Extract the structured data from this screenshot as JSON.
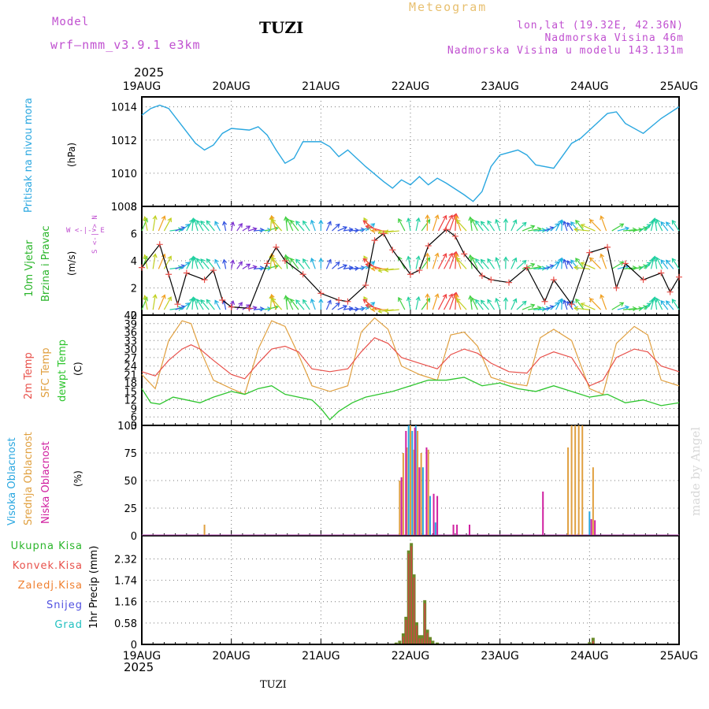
{
  "header": {
    "model_label": "Model",
    "model_name": "wrf—nmm_v3.9.1  e3km",
    "station": "TUZI",
    "meteogram": "Meteogram",
    "lonlat": "lon,lat (19.32E, 42.36N)",
    "altitude": "Nadmorska Visina 46m",
    "model_altitude": "Nadmorska Visina u modelu 143.131m",
    "year": "2025",
    "footer_station": "TUZI",
    "watermark": "made by Angel"
  },
  "colors": {
    "pressure": "#2aa7e0",
    "wind_label": "#2ab52a",
    "temp2m": "#e8504a",
    "sfc": "#e0a040",
    "dewpt": "#2ec52e",
    "high": "#2aa7e0",
    "mid": "#e0a040",
    "low": "#d020a0",
    "total": "#2ab52a",
    "conv": "#e8504a",
    "frozen": "#f08030",
    "snow": "#5050e0",
    "hail": "#20c0c0",
    "header_purple": "#c050d0",
    "header_gold": "#e8c070"
  },
  "chart_data": [
    {
      "type": "line",
      "panel": "pressure",
      "title": "Pritisak na nivou mora",
      "ylabel": "(hPa)",
      "x_ticks": [
        "19AUG",
        "20AUG",
        "21AUG",
        "22AUG",
        "23AUG",
        "24AUG",
        "25AUG"
      ],
      "xlim_days": [
        0,
        6
      ],
      "ylim": [
        1008,
        1014.6
      ],
      "y_ticks": [
        "1008",
        "1010",
        "1012",
        "1014"
      ],
      "y_tick_values": [
        1008,
        1010,
        1012,
        1014
      ],
      "series": [
        {
          "name": "MSLP",
          "x": [
            0,
            0.1,
            0.2,
            0.3,
            0.5,
            0.6,
            0.7,
            0.8,
            0.9,
            1.0,
            1.2,
            1.3,
            1.4,
            1.5,
            1.6,
            1.7,
            1.8,
            2.0,
            2.1,
            2.2,
            2.3,
            2.5,
            2.7,
            2.8,
            2.9,
            3.0,
            3.1,
            3.2,
            3.3,
            3.4,
            3.6,
            3.7,
            3.8,
            3.9,
            4.0,
            4.2,
            4.3,
            4.4,
            4.6,
            4.8,
            4.9,
            5.0,
            5.2,
            5.3,
            5.4,
            5.6,
            5.8,
            6.0
          ],
          "values": [
            1013.5,
            1013.9,
            1014.1,
            1013.9,
            1012.5,
            1011.8,
            1011.4,
            1011.7,
            1012.4,
            1012.7,
            1012.6,
            1012.8,
            1012.3,
            1011.4,
            1010.6,
            1010.9,
            1011.9,
            1011.9,
            1011.6,
            1011.0,
            1011.4,
            1010.4,
            1009.5,
            1009.1,
            1009.6,
            1009.3,
            1009.8,
            1009.3,
            1009.7,
            1009.4,
            1008.7,
            1008.3,
            1008.9,
            1010.4,
            1011.1,
            1011.4,
            1011.1,
            1010.5,
            1010.3,
            1011.8,
            1012.1,
            1012.6,
            1013.6,
            1013.7,
            1013.0,
            1012.4,
            1013.3,
            1014.0
          ]
        }
      ]
    },
    {
      "type": "line",
      "panel": "wind",
      "title": "10m Vjetar",
      "title2": "Brzina i Pravac",
      "ylabel": "(m/s)",
      "legend_dirs": "W <-|-> E",
      "legend_ns": "S <-|-> N",
      "ylim": [
        0,
        8
      ],
      "y_ticks": [
        "0",
        "2",
        "4",
        "6",
        "8"
      ],
      "y_tick_values": [
        0,
        2,
        4,
        6,
        8
      ],
      "series": [
        {
          "name": "speed",
          "x": [
            0,
            0.2,
            0.3,
            0.4,
            0.5,
            0.7,
            0.8,
            0.9,
            1.0,
            1.2,
            1.4,
            1.5,
            1.6,
            1.8,
            2.0,
            2.2,
            2.3,
            2.5,
            2.6,
            2.7,
            2.8,
            3.0,
            3.1,
            3.2,
            3.4,
            3.5,
            3.6,
            3.8,
            3.9,
            4.1,
            4.3,
            4.5,
            4.6,
            4.8,
            5.0,
            5.2,
            5.3,
            5.4,
            5.6,
            5.8,
            5.9,
            6.0
          ],
          "values": [
            3.5,
            5.2,
            3.0,
            0.8,
            3.1,
            2.6,
            3.3,
            1.1,
            0.6,
            0.5,
            3.8,
            5.0,
            4.0,
            3.0,
            1.6,
            1.1,
            1.0,
            2.2,
            5.5,
            6.0,
            4.8,
            3.0,
            3.3,
            5.1,
            6.3,
            5.8,
            4.5,
            2.9,
            2.6,
            2.4,
            3.5,
            1.0,
            2.6,
            0.8,
            4.6,
            5.0,
            2.0,
            3.8,
            2.6,
            3.1,
            1.7,
            2.8
          ]
        }
      ]
    },
    {
      "type": "line",
      "panel": "temperature",
      "title_2m": "2m Temp",
      "title_sfc": "SFC Temp",
      "title_dew": "dewpt Temp",
      "ylabel": "(C)",
      "ylim": [
        3,
        42
      ],
      "y_ticks": [
        "3",
        "6",
        "9",
        "12",
        "15",
        "18",
        "21",
        "24",
        "27",
        "30",
        "33",
        "36",
        "39",
        "42"
      ],
      "y_tick_values": [
        3,
        6,
        9,
        12,
        15,
        18,
        21,
        24,
        27,
        30,
        33,
        36,
        39,
        42
      ],
      "series": [
        {
          "name": "2m Temp",
          "x": [
            0,
            0.15,
            0.3,
            0.45,
            0.55,
            0.65,
            0.8,
            1.0,
            1.15,
            1.3,
            1.45,
            1.6,
            1.75,
            1.9,
            2.1,
            2.3,
            2.45,
            2.6,
            2.75,
            2.9,
            3.1,
            3.3,
            3.45,
            3.6,
            3.75,
            3.9,
            4.1,
            4.3,
            4.45,
            4.6,
            4.8,
            5.0,
            5.15,
            5.3,
            5.5,
            5.65,
            5.8,
            6.0
          ],
          "values": [
            22,
            20.5,
            26,
            30,
            31.5,
            30,
            26,
            21,
            19.5,
            25,
            30,
            31,
            29,
            23,
            22,
            23,
            29,
            34,
            32,
            27,
            25,
            23,
            28,
            30,
            28.5,
            25,
            22,
            21.5,
            27,
            29,
            27,
            17,
            19,
            27,
            30,
            29,
            24,
            22
          ]
        },
        {
          "name": "SFC Temp",
          "x": [
            0,
            0.15,
            0.3,
            0.45,
            0.55,
            0.65,
            0.8,
            1.0,
            1.15,
            1.3,
            1.45,
            1.6,
            1.75,
            1.9,
            2.1,
            2.3,
            2.45,
            2.6,
            2.75,
            2.9,
            3.1,
            3.3,
            3.45,
            3.6,
            3.75,
            3.9,
            4.1,
            4.3,
            4.45,
            4.6,
            4.8,
            5.0,
            5.15,
            5.3,
            5.5,
            5.65,
            5.8,
            6.0
          ],
          "values": [
            21,
            16,
            33,
            40,
            39,
            30,
            19,
            16,
            14,
            30,
            40,
            38,
            28,
            17,
            15,
            17,
            36,
            41,
            37,
            24,
            21,
            19,
            35,
            36,
            31,
            20,
            18,
            17,
            34,
            37,
            33,
            16,
            14,
            32,
            38,
            35,
            19,
            17
          ]
        },
        {
          "name": "dewpt Temp",
          "x": [
            0,
            0.1,
            0.2,
            0.35,
            0.5,
            0.65,
            0.8,
            1.0,
            1.15,
            1.3,
            1.45,
            1.6,
            1.75,
            1.9,
            2.0,
            2.1,
            2.2,
            2.35,
            2.5,
            2.65,
            2.8,
            3.0,
            3.2,
            3.4,
            3.6,
            3.8,
            4.0,
            4.2,
            4.4,
            4.6,
            4.8,
            5.0,
            5.2,
            5.4,
            5.6,
            5.8,
            6.0
          ],
          "values": [
            16,
            11,
            10.5,
            13,
            12,
            11,
            13,
            15,
            14,
            16,
            17,
            14,
            13,
            12,
            9,
            5,
            8,
            11,
            13,
            14,
            15,
            17,
            19,
            19,
            20,
            17,
            18,
            16,
            15,
            17,
            15,
            13,
            14,
            11,
            12,
            10,
            11
          ]
        }
      ]
    },
    {
      "type": "bar",
      "panel": "clouds",
      "title_high": "Visoka Oblacnost",
      "title_mid": "Srednja Oblacnost",
      "title_low": "Niska Oblacnost",
      "ylabel": "(%)",
      "ylim": [
        0,
        100
      ],
      "y_ticks": [
        "0",
        "25",
        "50",
        "75",
        "100"
      ],
      "y_tick_values": [
        0,
        25,
        50,
        75,
        100
      ],
      "series": [
        {
          "name": "Srednja",
          "x": [
            0.7,
            2.88,
            2.92,
            2.96,
            3.0,
            3.04,
            3.08,
            3.12,
            3.2,
            4.76,
            4.8,
            4.84,
            4.88,
            4.92,
            5.04
          ],
          "values": [
            10,
            50,
            75,
            80,
            100,
            78,
            95,
            75,
            78,
            80,
            100,
            100,
            100,
            100,
            62
          ]
        },
        {
          "name": "Visoka",
          "x": [
            2.98,
            3.02,
            3.06,
            3.14,
            3.22,
            3.28,
            5.0
          ],
          "values": [
            100,
            95,
            100,
            62,
            36,
            12,
            22
          ]
        },
        {
          "name": "Niska",
          "x": [
            2.9,
            2.95,
            3.05,
            3.1,
            3.18,
            3.26,
            3.3,
            3.48,
            3.52,
            3.66,
            4.48,
            5.02,
            5.06
          ],
          "values": [
            53,
            95,
            98,
            62,
            80,
            38,
            36,
            10,
            10,
            10,
            40,
            15,
            14
          ]
        }
      ]
    },
    {
      "type": "bar",
      "panel": "precip",
      "title_total": "Ukupna Kisa",
      "title_conv": "Konvek.Kisa",
      "title_frozen": "Zaledj.Kisa",
      "title_snow": "Snijeg",
      "title_hail": "Grad",
      "ylabel": "1hr Precip (mm)",
      "ylim": [
        0,
        2.95
      ],
      "y_ticks": [
        "0",
        "0.58",
        "1.16",
        "1.74",
        "2.32"
      ],
      "y_tick_values": [
        0,
        0.58,
        1.16,
        1.74,
        2.32
      ],
      "series": [
        {
          "name": "Ukupna Kisa",
          "x": [
            2.84,
            2.88,
            2.92,
            2.95,
            2.98,
            3.01,
            3.04,
            3.07,
            3.1,
            3.13,
            3.16,
            3.19,
            3.22,
            3.25,
            3.3,
            5.0,
            5.04
          ],
          "values": [
            0.05,
            0.1,
            0.3,
            0.75,
            2.55,
            2.75,
            1.9,
            0.6,
            0.25,
            0.25,
            1.2,
            0.4,
            0.2,
            0.1,
            0.05,
            0.06,
            0.18
          ]
        }
      ]
    }
  ]
}
